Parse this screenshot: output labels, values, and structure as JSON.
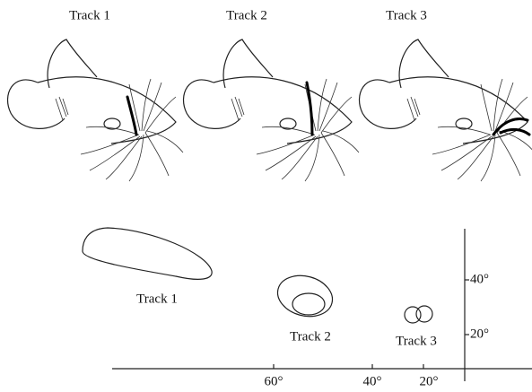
{
  "top_labels": [
    "Track 1",
    "Track 2",
    "Track 3"
  ],
  "plot": {
    "field_labels": [
      "Track 1",
      "Track 2",
      "Track 3"
    ],
    "x_tick_labels": [
      "60°",
      "40°",
      "20°"
    ],
    "y_tick_labels": [
      "40°",
      "20°"
    ]
  }
}
